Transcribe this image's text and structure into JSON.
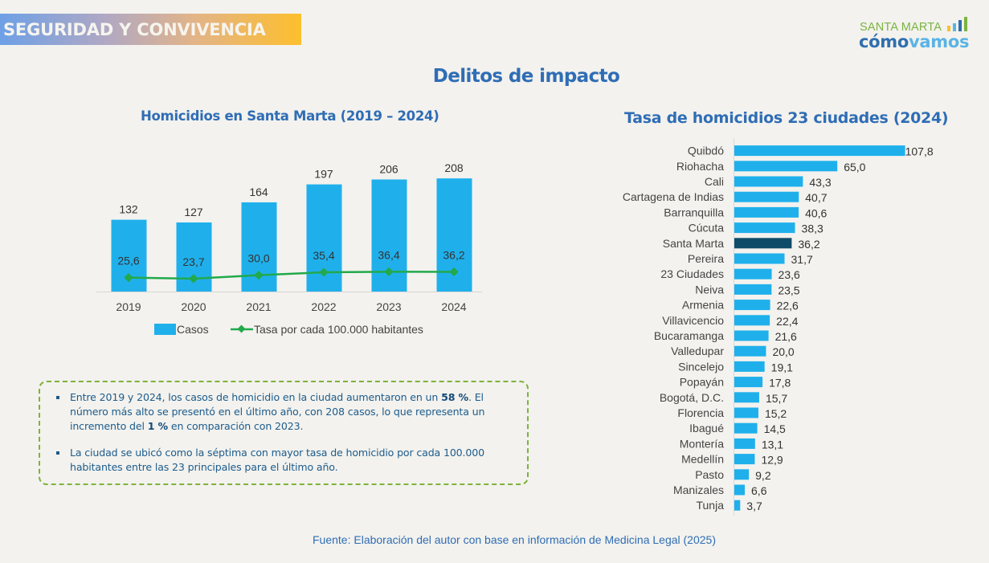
{
  "header": {
    "section_label": "SEGURIDAD Y CONVIVENCIA",
    "logo": {
      "line1": "SANTA MARTA",
      "line2_part1": "cómo",
      "line2_part2": "vamos",
      "bar_colors": [
        "#fdbf2d",
        "#5ab4e5",
        "#2f6fae",
        "#7cb342"
      ]
    }
  },
  "main_title": "Delitos de impacto",
  "colors": {
    "bar": "#1fb0ec",
    "highlight_bar": "#0f4c68",
    "line": "#22a94b",
    "title": "#2f6db5"
  },
  "chart_data": [
    {
      "type": "bar",
      "title": "Homicidios en Santa Marta (2019 – 2024)",
      "categories": [
        "2019",
        "2020",
        "2021",
        "2022",
        "2023",
        "2024"
      ],
      "series": [
        {
          "name": "Casos",
          "type": "bar",
          "values": [
            132,
            127,
            164,
            197,
            206,
            208
          ],
          "labels": [
            "132",
            "127",
            "164",
            "197",
            "206",
            "208"
          ]
        },
        {
          "name": "Tasa por cada 100.000 habitantes",
          "type": "line",
          "values": [
            25.6,
            23.7,
            30.0,
            35.4,
            36.4,
            36.2
          ],
          "labels": [
            "25,6",
            "23,7",
            "30,0",
            "35,4",
            "36,4",
            "36,2"
          ]
        }
      ],
      "xlabel": "",
      "ylabel": "",
      "ylim": [
        0,
        220
      ],
      "line_ylim": [
        0,
        220
      ],
      "grid": false,
      "legend": "bottom"
    },
    {
      "type": "bar",
      "orientation": "horizontal",
      "title": "Tasa de homicidios 23 ciudades  (2024)",
      "categories": [
        "Quibdó",
        "Riohacha",
        "Cali",
        "Cartagena de Indias",
        "Barranquilla",
        "Cúcuta",
        "Santa Marta",
        "Pereira",
        "23 Ciudades",
        "Neiva",
        "Armenia",
        "Villavicencio",
        "Bucaramanga",
        "Valledupar",
        "Sincelejo",
        "Popayán",
        "Bogotá, D.C.",
        "Florencia",
        "Ibagué",
        "Montería",
        "Medellín",
        "Pasto",
        "Manizales",
        "Tunja"
      ],
      "values": [
        107.8,
        65.0,
        43.3,
        40.7,
        40.6,
        38.3,
        36.2,
        31.7,
        23.6,
        23.5,
        22.6,
        22.4,
        21.6,
        20.0,
        19.1,
        17.8,
        15.7,
        15.2,
        14.5,
        13.1,
        12.9,
        9.2,
        6.6,
        3.7
      ],
      "labels": [
        "107,8",
        "65,0",
        "43,3",
        "40,7",
        "40,6",
        "38,3",
        "36,2",
        "31,7",
        "23,6",
        "23,5",
        "22,6",
        "22,4",
        "21,6",
        "20,0",
        "19,1",
        "17,8",
        "15,7",
        "15,2",
        "14,5",
        "13,1",
        "12,9",
        "9,2",
        "6,6",
        "3,7"
      ],
      "highlight": "Santa Marta",
      "xlim": [
        0,
        108
      ],
      "grid": false,
      "legend": "none"
    }
  ],
  "notes": [
    {
      "parts": [
        {
          "text": "Entre 2019 y 2024, los casos de homicidio en la ciudad aumentaron en un ",
          "bold": false
        },
        {
          "text": "58 %",
          "bold": true
        },
        {
          "text": ". El número más alto se presentó en el último año, con 208 casos, lo que representa un incremento del ",
          "bold": false
        },
        {
          "text": "1 %",
          "bold": true
        },
        {
          "text": " en comparación con 2023.",
          "bold": false
        }
      ]
    },
    {
      "parts": [
        {
          "text": "La ciudad se ubicó como la séptima con mayor tasa de homicidio por cada 100.000 habitantes entre las 23 principales para el último año.",
          "bold": false
        }
      ]
    }
  ],
  "source": "Fuente: Elaboración del autor con base en información de Medicina Legal (2025)"
}
